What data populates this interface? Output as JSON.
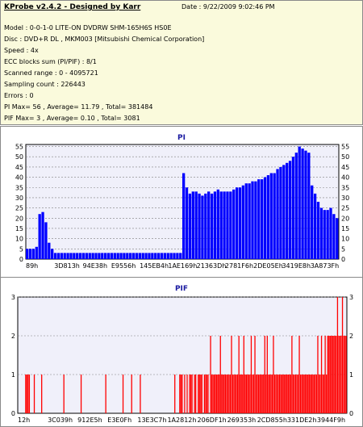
{
  "header": {
    "title": "KProbe v2.4.2 - Designed by Karr",
    "date": "Date : 9/22/2009 9:02:46 PM",
    "lines": [
      "Model : 0-0-1-0 LITE-ON DVDRW SHM-165H6S HS0E",
      "Disc : DVD+R DL , MKM003 [Mitsubishi Chemical Corporation]",
      "Speed : 4x",
      "ECC blocks sum (PI/PIF) : 8/1",
      "Scanned range : 0 - 4095721",
      "Sampling count : 226443",
      "Errors : 0",
      "PI Max= 56 , Average= 11.79 , Total= 381484",
      "PIF Max= 3 , Average= 0.10 , Total= 3081"
    ]
  },
  "colors": {
    "pi": "#0000ff",
    "pif": "#ff0000",
    "plot_bg": "#f0f0fa",
    "grid": "#808080"
  },
  "chart_data": [
    {
      "type": "area",
      "title": "PI",
      "ylim": [
        0,
        56
      ],
      "y_ticks": [
        0,
        5,
        10,
        15,
        20,
        25,
        30,
        35,
        40,
        45,
        50,
        55
      ],
      "x_tick_labels": [
        "89h",
        "3D813h",
        "94E38h",
        "E9556h",
        "145EB4h",
        "1AE169h",
        "21363Dh",
        "2781F6h",
        "2DE05Eh",
        "3419E8h",
        "3A873Fh"
      ],
      "grid": true,
      "series": [
        {
          "values": [
            5,
            5,
            5,
            6,
            22,
            23,
            18,
            8,
            5,
            3,
            3,
            3,
            3,
            3,
            3,
            3,
            3,
            3,
            3,
            3,
            3,
            3,
            3,
            3,
            3,
            3,
            3,
            3,
            3,
            3,
            3,
            3,
            3,
            3,
            3,
            3,
            3,
            3,
            3,
            3,
            3,
            3,
            3,
            3,
            3,
            3,
            3,
            3,
            3,
            3,
            42,
            35,
            32,
            33,
            33,
            32,
            31,
            32,
            33,
            32,
            33,
            34,
            33,
            33,
            33,
            33,
            34,
            35,
            35,
            36,
            37,
            37,
            38,
            38,
            39,
            39,
            40,
            41,
            42,
            42,
            44,
            45,
            46,
            47,
            48,
            50,
            52,
            55,
            54,
            53,
            52,
            36,
            32,
            28,
            25,
            24,
            24,
            25,
            22,
            20
          ]
        }
      ]
    },
    {
      "type": "bar",
      "title": "PIF",
      "ylim": [
        0,
        3
      ],
      "y_ticks": [
        0,
        1,
        2,
        3
      ],
      "x_tick_labels": [
        "12h",
        "3C039h",
        "912E5h",
        "E3E0Fh",
        "13E3C7h",
        "1A2812h",
        "206DF1h",
        "269353h",
        "2CD855h",
        "331DE2h",
        "3944F9h"
      ],
      "grid": true,
      "series": [
        {
          "values": [
            0,
            0,
            0,
            0,
            0,
            0,
            1,
            1,
            1,
            1,
            0,
            0,
            0,
            1,
            0,
            0,
            0,
            0,
            0,
            1,
            0,
            0,
            0,
            0,
            0,
            0,
            0,
            0,
            0,
            0,
            0,
            0,
            0,
            0,
            0,
            0,
            0,
            1,
            0,
            0,
            0,
            0,
            0,
            0,
            0,
            0,
            0,
            0,
            0,
            0,
            0,
            1,
            0,
            0,
            0,
            0,
            0,
            0,
            0,
            0,
            0,
            0,
            0,
            0,
            0,
            0,
            0,
            0,
            0,
            0,
            0,
            1,
            0,
            0,
            0,
            0,
            0,
            0,
            0,
            0,
            0,
            0,
            0,
            0,
            0,
            1,
            0,
            0,
            0,
            0,
            0,
            0,
            1,
            0,
            0,
            0,
            0,
            0,
            0,
            1,
            0,
            0,
            0,
            0,
            0,
            0,
            0,
            0,
            0,
            0,
            0,
            0,
            0,
            0,
            0,
            0,
            0,
            0,
            0,
            0,
            0,
            0,
            0,
            0,
            0,
            0,
            0,
            1,
            0,
            0,
            0,
            1,
            1,
            1,
            0,
            1,
            0,
            1,
            0,
            1,
            1,
            1,
            0,
            1,
            1,
            0,
            1,
            1,
            1,
            1,
            0,
            1,
            1,
            1,
            1,
            0,
            2,
            1,
            1,
            1,
            1,
            1,
            1,
            1,
            2,
            1,
            1,
            1,
            1,
            1,
            1,
            1,
            1,
            2,
            1,
            1,
            1,
            1,
            1,
            2,
            1,
            1,
            1,
            2,
            1,
            1,
            1,
            1,
            1,
            2,
            1,
            1,
            2,
            1,
            1,
            1,
            1,
            1,
            1,
            1,
            2,
            1,
            2,
            1,
            1,
            1,
            1,
            2,
            1,
            1,
            1,
            1,
            1,
            1,
            1,
            1,
            1,
            1,
            1,
            1,
            1,
            1,
            2,
            1,
            1,
            1,
            1,
            1,
            2,
            1,
            1,
            1,
            1,
            1,
            1,
            1,
            1,
            1,
            1,
            1,
            1,
            1,
            1,
            2,
            1,
            1,
            2,
            1,
            1,
            2,
            1,
            2,
            2,
            2,
            2,
            2,
            2,
            2,
            2,
            3,
            2,
            2,
            2,
            3,
            2,
            2,
            2
          ]
        }
      ]
    }
  ]
}
